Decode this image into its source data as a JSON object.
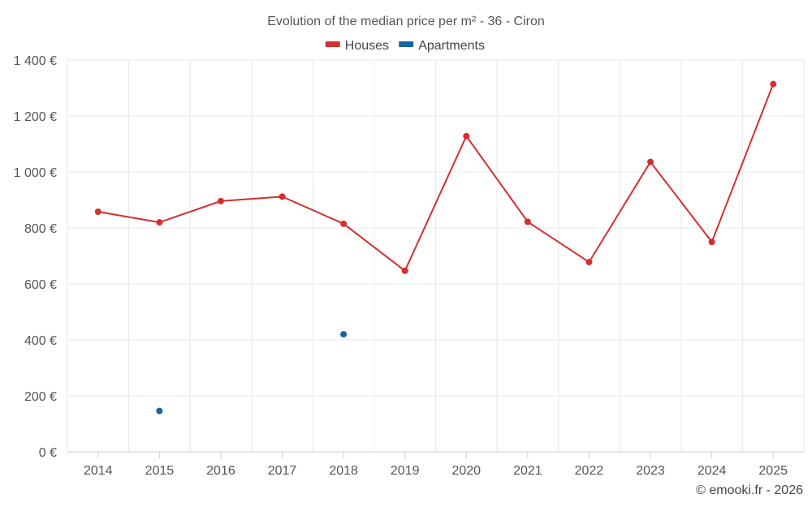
{
  "chart_data": {
    "type": "line",
    "title": "Evolution of the median price per m² - 36 - Ciron",
    "categories": [
      "2014",
      "2015",
      "2016",
      "2017",
      "2018",
      "2019",
      "2020",
      "2021",
      "2022",
      "2023",
      "2024",
      "2025"
    ],
    "series": [
      {
        "name": "Houses",
        "color": "#d32f2f",
        "values": [
          858,
          820,
          896,
          912,
          815,
          647,
          1128,
          822,
          678,
          1036,
          750,
          1314
        ]
      },
      {
        "name": "Apartments",
        "color": "#1565a0",
        "values": [
          null,
          146,
          null,
          null,
          420,
          null,
          null,
          null,
          null,
          null,
          null,
          null
        ]
      }
    ],
    "y_ticks": [
      "0 €",
      "200 €",
      "400 €",
      "600 €",
      "800 €",
      "1 000 €",
      "1 200 €",
      "1 400 €"
    ],
    "y_tick_values": [
      0,
      200,
      400,
      600,
      800,
      1000,
      1200,
      1400
    ],
    "ylim": [
      0,
      1400
    ],
    "xlabel": "",
    "ylabel": "",
    "legend_position": "top-center",
    "grid": true
  },
  "credit": "© emooki.fr - 2026"
}
